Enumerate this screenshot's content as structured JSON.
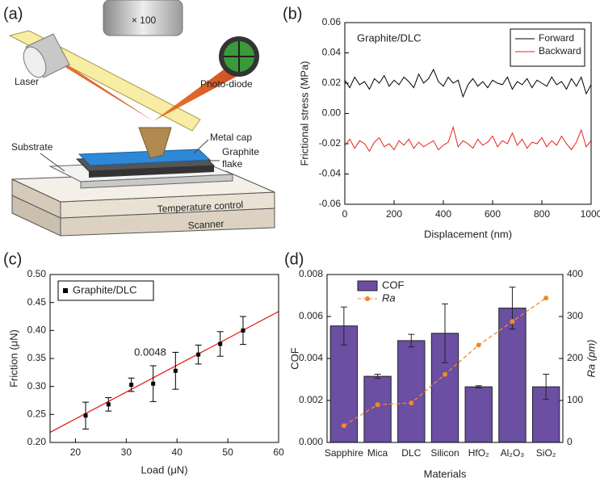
{
  "diagram": {
    "label": "(a)",
    "objective": "× 100",
    "laser": "Laser",
    "photodiode": "Photo-diode",
    "metal_cap": "Metal cap",
    "graphite_flake": [
      "Graphite",
      "flake"
    ],
    "substrate": "Substrate",
    "temperature_control": "Temperature control",
    "scanner": "Scanner"
  },
  "chart_data": [
    {
      "type": "line",
      "label": "(b)",
      "annotation": "Graphite/DLC",
      "xlabel": "Displacement (nm)",
      "ylabel": "Frictional stress (MPa)",
      "xlim": [
        0,
        1000
      ],
      "xticks": [
        0,
        200,
        400,
        600,
        800,
        1000
      ],
      "ylim": [
        -0.06,
        0.06
      ],
      "yticks": [
        -0.06,
        -0.04,
        -0.02,
        {
          "value": 0,
          "label": "0.00"
        },
        0.02,
        0.04,
        0.06
      ],
      "legend": "upper right",
      "x": [
        0,
        20,
        40,
        60,
        80,
        100,
        120,
        140,
        160,
        180,
        200,
        220,
        240,
        260,
        280,
        300,
        320,
        340,
        360,
        380,
        400,
        420,
        440,
        460,
        480,
        500,
        520,
        540,
        560,
        580,
        600,
        620,
        640,
        660,
        680,
        700,
        720,
        740,
        760,
        780,
        800,
        820,
        840,
        860,
        880,
        900,
        920,
        940,
        960,
        980,
        1000
      ],
      "series": [
        {
          "name": "Forward",
          "color": "#000000",
          "values": [
            0.022,
            0.017,
            0.024,
            0.019,
            0.021,
            0.016,
            0.023,
            0.02,
            0.025,
            0.018,
            0.022,
            0.019,
            0.024,
            0.021,
            0.017,
            0.026,
            0.02,
            0.023,
            0.029,
            0.021,
            0.018,
            0.024,
            0.02,
            0.022,
            0.011,
            0.019,
            0.023,
            0.018,
            0.021,
            0.017,
            0.022,
            0.02,
            0.019,
            0.024,
            0.016,
            0.021,
            0.019,
            0.023,
            0.017,
            0.022,
            0.02,
            0.018,
            0.024,
            0.019,
            0.021,
            0.016,
            0.023,
            0.018,
            0.024,
            0.013,
            0.019
          ]
        },
        {
          "name": "Backward",
          "color": "#e8231d",
          "values": [
            -0.021,
            -0.017,
            -0.023,
            -0.018,
            -0.02,
            -0.025,
            -0.019,
            -0.016,
            -0.022,
            -0.02,
            -0.024,
            -0.018,
            -0.021,
            -0.017,
            -0.023,
            -0.019,
            -0.022,
            -0.02,
            -0.018,
            -0.024,
            -0.021,
            -0.019,
            -0.009,
            -0.022,
            -0.018,
            -0.02,
            -0.023,
            -0.017,
            -0.021,
            -0.019,
            -0.015,
            -0.022,
            -0.018,
            -0.02,
            -0.013,
            -0.021,
            -0.017,
            -0.023,
            -0.019,
            -0.02,
            -0.016,
            -0.022,
            -0.018,
            -0.021,
            -0.015,
            -0.02,
            -0.024,
            -0.019,
            -0.011,
            -0.022,
            -0.018
          ]
        }
      ]
    },
    {
      "type": "scatter",
      "label": "(c)",
      "xlabel": "Load (μN)",
      "ylabel": "Friction (μN)",
      "xlim": [
        15,
        60
      ],
      "xticks": [
        20,
        30,
        40,
        50,
        60
      ],
      "ylim": [
        0.2,
        0.5
      ],
      "yticks": [
        {
          "value": 0.2,
          "label": "0.20"
        },
        0.25,
        {
          "value": 0.3,
          "label": "0.30"
        },
        0.35,
        {
          "value": 0.4,
          "label": "0.40"
        },
        0.45,
        {
          "value": 0.5,
          "label": "0.50"
        }
      ],
      "legend": "upper left",
      "x": [
        22,
        26.5,
        31,
        35.3,
        39.7,
        44.2,
        48.5,
        53
      ],
      "series": [
        {
          "name": "Graphite/DLC",
          "color": "#000000",
          "values": [
            0.248,
            0.268,
            0.303,
            0.305,
            0.328,
            0.357,
            0.376,
            0.4
          ],
          "errors": [
            0.024,
            0.012,
            0.012,
            0.032,
            0.033,
            0.017,
            0.022,
            0.025
          ]
        }
      ],
      "fit": {
        "x": [
          15,
          60
        ],
        "values": [
          0.218,
          0.434
        ],
        "color": "#e8231d"
      },
      "annotation": {
        "text": "0.0048",
        "color": "#e8231d"
      }
    },
    {
      "type": "bar",
      "label": "(d)",
      "xlabel": "Materials",
      "ylabel": "COF",
      "y2label": "Ra (pm)",
      "categories": [
        "Sapphire",
        "Mica",
        "DLC",
        "Silicon",
        "HfO₂",
        "Al₂O₃",
        "SiO₂"
      ],
      "ylim": [
        0,
        0.008
      ],
      "yticks": [
        {
          "value": 0,
          "label": "0.000"
        },
        0.002,
        0.004,
        0.006,
        0.008
      ],
      "y2lim": [
        0,
        400
      ],
      "y2ticks": [
        0,
        100,
        200,
        300,
        400
      ],
      "legend": "upper left",
      "series": [
        {
          "name": "COF",
          "color": "#6b4fa3",
          "values": [
            0.00555,
            0.00315,
            0.00485,
            0.0052,
            0.00265,
            0.0064,
            0.00265
          ],
          "errors": [
            0.0009,
            0.0001,
            0.0003,
            0.0014,
            5e-05,
            0.001,
            0.0006
          ]
        },
        {
          "name": "Ra",
          "color": "#f08a24",
          "axis": "y2",
          "values": [
            40,
            90,
            94,
            162,
            232,
            288,
            344
          ]
        }
      ]
    }
  ]
}
